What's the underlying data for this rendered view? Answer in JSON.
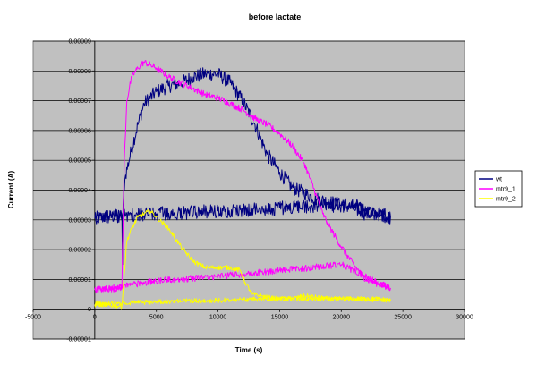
{
  "chart_data": {
    "type": "line",
    "title": "before lactate",
    "xlabel": "Time (s)",
    "ylabel": "Current (A)",
    "xlim": [
      -5000,
      30000
    ],
    "ylim": [
      -1e-05,
      9e-05
    ],
    "x_ticks": [
      -5000,
      0,
      5000,
      10000,
      15000,
      20000,
      25000,
      30000
    ],
    "x_tick_labels": [
      "-5000",
      "0",
      "5000",
      "10000",
      "15000",
      "20000",
      "25000",
      "30000"
    ],
    "y_ticks": [
      -1e-05,
      0,
      1e-05,
      2e-05,
      3e-05,
      4e-05,
      5e-05,
      6e-05,
      7e-05,
      8e-05,
      9e-05
    ],
    "y_tick_labels": [
      "-0.00001",
      "0",
      "0.00001",
      "0.00002",
      "0.00003",
      "0.00004",
      "0.00005",
      "0.00006",
      "0.00007",
      "0.00008",
      "0.00009"
    ],
    "grid": "horizontal",
    "plot_background": "#c0c0c0",
    "legend_position": "right",
    "series": [
      {
        "name": "wt",
        "color": "#000080",
        "noise": 2.4e-06,
        "x": [
          0,
          2200,
          2250,
          2300,
          2350,
          2500,
          3000,
          3500,
          4000,
          5000,
          6000,
          7000,
          8000,
          9000,
          10000,
          11000,
          12000,
          13000,
          13500,
          14000,
          15000,
          16000,
          17000,
          18000,
          19000,
          20000,
          21000,
          22000,
          23000,
          24000,
          24000,
          23000,
          22000,
          21000,
          20000,
          15000,
          10000,
          5000,
          2000,
          0
        ],
        "y": [
          3.05e-05,
          3.15e-05,
          1.5e-05,
          3.5e-05,
          4e-05,
          4.5e-05,
          5.4e-05,
          6.2e-05,
          6.9e-05,
          7.3e-05,
          7.5e-05,
          7.6e-05,
          7.8e-05,
          7.9e-05,
          7.9e-05,
          7.6e-05,
          7e-05,
          6.2e-05,
          5.7e-05,
          5.2e-05,
          4.6e-05,
          4.1e-05,
          3.9e-05,
          3.7e-05,
          3.6e-05,
          3.5e-05,
          3.4e-05,
          3.2e-05,
          3.2e-05,
          3.1e-05,
          3.1e-05,
          3.2e-05,
          3.3e-05,
          3.5e-05,
          3.5e-05,
          3.4e-05,
          3.3e-05,
          3.2e-05,
          3.15e-05,
          3.05e-05
        ]
      },
      {
        "name": "mtr9_1",
        "color": "#ff00ff",
        "noise": 1.1e-06,
        "x": [
          0,
          2000,
          2200,
          2400,
          2600,
          3000,
          3500,
          4000,
          4500,
          5000,
          6000,
          7000,
          8000,
          9000,
          10000,
          11000,
          12000,
          13000,
          14000,
          15000,
          16000,
          17000,
          18000,
          18500,
          19000,
          20000,
          21000,
          22000,
          23000,
          24000,
          24000,
          20000,
          15000,
          10000,
          5000,
          0
        ],
        "y": [
          6.5e-06,
          7e-06,
          7.5e-06,
          5e-05,
          7e-05,
          7.8e-05,
          8.1e-05,
          8.3e-05,
          8.2e-05,
          8.1e-05,
          7.8e-05,
          7.6e-05,
          7.4e-05,
          7.2e-05,
          7.1e-05,
          6.9e-05,
          6.7e-05,
          6.4e-05,
          6.2e-05,
          5.9e-05,
          5.5e-05,
          4.9e-05,
          3.8e-05,
          3.2e-05,
          2.8e-05,
          2.1e-05,
          1.5e-05,
          1e-05,
          8.5e-06,
          7e-06,
          7e-06,
          1.5e-05,
          1.3e-05,
          1.1e-05,
          9.5e-06,
          6.5e-06
        ]
      },
      {
        "name": "mtr9_2",
        "color": "#ffff00",
        "noise": 8e-07,
        "x": [
          0,
          200,
          600,
          2000,
          2200,
          2400,
          2600,
          3000,
          3500,
          4000,
          4500,
          5000,
          6000,
          7000,
          8000,
          9000,
          10000,
          11000,
          11800,
          12200,
          12800,
          13500,
          14000,
          15000,
          16000,
          17000,
          18000,
          19000,
          20000,
          21000,
          22000,
          23000,
          24000,
          24000,
          20000,
          15000,
          10000,
          5000,
          2000,
          0
        ],
        "y": [
          1.5e-06,
          2.5e-06,
          1.5e-06,
          1e-06,
          1e-06,
          1.2e-05,
          2.3e-05,
          2.7e-05,
          3.1e-05,
          3.2e-05,
          3.3e-05,
          3.1e-05,
          2.7e-05,
          2.1e-05,
          1.6e-05,
          1.4e-05,
          1.4e-05,
          1.4e-05,
          1.3e-05,
          9e-06,
          5e-06,
          4.5e-06,
          4e-06,
          3.5e-06,
          3.5e-06,
          4.5e-06,
          4e-06,
          3.5e-06,
          3.5e-06,
          3.5e-06,
          3.5e-06,
          3.5e-06,
          3e-06,
          3e-06,
          3.5e-06,
          3.5e-06,
          3e-06,
          2.5e-06,
          2e-06,
          1.5e-06
        ]
      }
    ]
  }
}
